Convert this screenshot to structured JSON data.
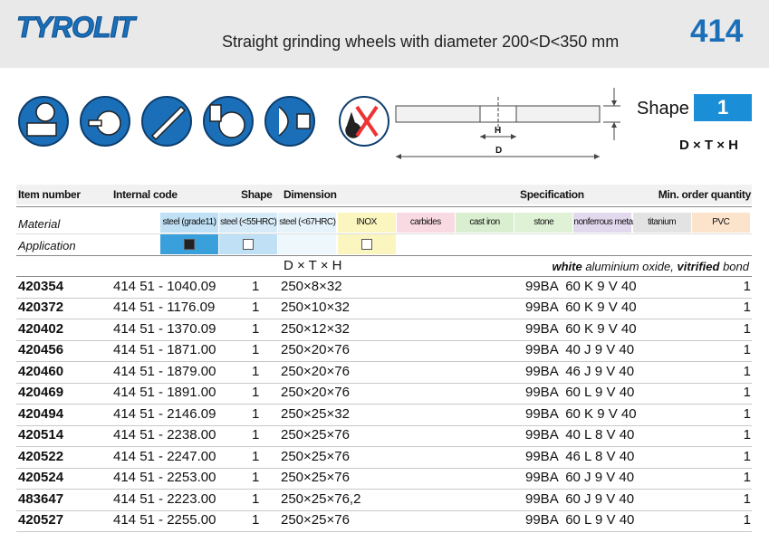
{
  "header": {
    "logo": "TYROLIT",
    "title": "Straight grinding wheels with diameter 200<D<350 mm",
    "page": "414"
  },
  "shape": {
    "label": "Shape",
    "number": "1",
    "formula": "D × T × H",
    "drawing_labels": [
      "H",
      "D"
    ]
  },
  "table": {
    "columns": [
      "Item number",
      "Internal code",
      "Shape",
      "Dimension",
      "Specification",
      "Min. order quantity"
    ],
    "material_label": "Material",
    "application_label": "Application",
    "materials": [
      {
        "name": "steel (grade11)",
        "color": "#bfe0f5",
        "app_color": "#3aa0dc",
        "application": "filled"
      },
      {
        "name": "steel (<55HRC)",
        "color": "#d6ebf8",
        "app_color": "#bfe0f5",
        "application": "empty"
      },
      {
        "name": "steel (<67HRC)",
        "color": "#e6f3fb",
        "app_color": "#eef7fc",
        "application": null
      },
      {
        "name": "INOX",
        "color": "#fbf6c0",
        "app_color": "#fbf6c0",
        "application": "empty"
      },
      {
        "name": "carbides",
        "color": "#f9d9e2",
        "app_color": "#ffffff",
        "application": null
      },
      {
        "name": "cast iron",
        "color": "#d9efcf",
        "app_color": "#ffffff",
        "application": null
      },
      {
        "name": "stone",
        "color": "#dff2d6",
        "app_color": "#ffffff",
        "application": null
      },
      {
        "name": "nonferrous metals",
        "color": "#e3d9ef",
        "app_color": "#ffffff",
        "application": null
      },
      {
        "name": "titanium",
        "color": "#e3e3e3",
        "app_color": "#ffffff",
        "application": null
      },
      {
        "name": "PVC",
        "color": "#fbe3cc",
        "app_color": "#ffffff",
        "application": null
      }
    ],
    "dimension_formula": "D × T × H",
    "spec_note": [
      {
        "text": "white",
        "bold": true
      },
      {
        "text": " aluminium oxide, ",
        "bold": false
      },
      {
        "text": "vitrified",
        "bold": true
      },
      {
        "text": " bond",
        "bold": false
      }
    ],
    "rows": [
      [
        "420354",
        "414 51 - 1040.09",
        "1",
        "250×8×32",
        "99BA  60 K 9 V 40",
        "1"
      ],
      [
        "420372",
        "414 51 - 1176.09",
        "1",
        "250×10×32",
        "99BA  60 K 9 V 40",
        "1"
      ],
      [
        "420402",
        "414 51 - 1370.09",
        "1",
        "250×12×32",
        "99BA  60 K 9 V 40",
        "1"
      ],
      [
        "420456",
        "414 51 - 1871.00",
        "1",
        "250×20×76",
        "99BA  40 J 9 V 40",
        "1"
      ],
      [
        "420460",
        "414 51 - 1879.00",
        "1",
        "250×20×76",
        "99BA  46 J 9 V 40",
        "1"
      ],
      [
        "420469",
        "414 51 - 1891.00",
        "1",
        "250×20×76",
        "99BA  60 L 9 V 40",
        "1"
      ],
      [
        "420494",
        "414 51 - 2146.09",
        "1",
        "250×25×32",
        "99BA  60 K 9 V 40",
        "1"
      ],
      [
        "420514",
        "414 51 - 2238.00",
        "1",
        "250×25×76",
        "99BA  40 L 8 V 40",
        "1"
      ],
      [
        "420522",
        "414 51 - 2247.00",
        "1",
        "250×25×76",
        "99BA  46 L 8 V 40",
        "1"
      ],
      [
        "420524",
        "414 51 - 2253.00",
        "1",
        "250×25×76",
        "99BA  60 J 9 V 40",
        "1"
      ],
      [
        "483647",
        "414 51 - 2223.00",
        "1",
        "250×25×76,2",
        "99BA  60 J 9 V 40",
        "1"
      ],
      [
        "420527",
        "414 51 - 2255.00",
        "1",
        "250×25×76",
        "99BA  60 L 9 V 40",
        "1"
      ]
    ]
  }
}
